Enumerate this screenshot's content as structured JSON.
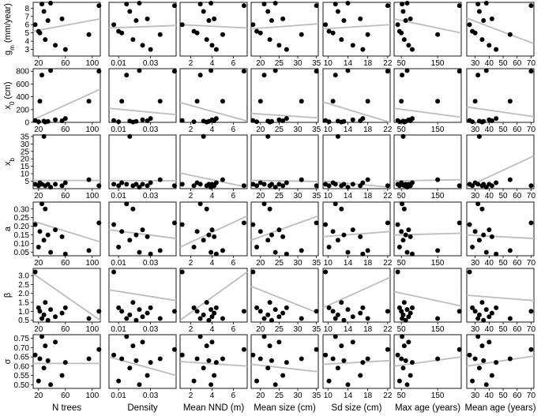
{
  "chart_data": {
    "type": "scatter",
    "grid": false,
    "columns": [
      {
        "id": "ntrees",
        "xlabel": "N trees",
        "xlim": [
          12,
          112
        ],
        "ticks": [
          20,
          60,
          100
        ],
        "tick_labels": [
          "20",
          "60",
          "100"
        ],
        "x": [
          15,
          20,
          22,
          25,
          28,
          30,
          34,
          38,
          45,
          55,
          60,
          95,
          110
        ]
      },
      {
        "id": "density",
        "xlabel": "Density",
        "xlim": [
          0.004,
          0.046
        ],
        "ticks": [
          0.01,
          0.03
        ],
        "tick_labels": [
          "0.01",
          "0.03"
        ],
        "x": [
          0.007,
          0.01,
          0.012,
          0.015,
          0.017,
          0.019,
          0.021,
          0.023,
          0.025,
          0.028,
          0.03,
          0.036,
          0.045
        ]
      },
      {
        "id": "nnd",
        "xlabel": "Mean NND (m)",
        "xlim": [
          1.0,
          7.3
        ],
        "ticks": [
          2,
          4,
          6
        ],
        "tick_labels": [
          "2",
          "4",
          "6"
        ],
        "x": [
          1.2,
          2.3,
          2.6,
          2.9,
          3.2,
          3.5,
          3.7,
          3.9,
          4.0,
          4.2,
          4.4,
          5.0,
          7.0
        ]
      },
      {
        "id": "meansize",
        "xlabel": "Mean size (cm)",
        "xlim": [
          17.5,
          35.5
        ],
        "ticks": [
          20,
          25,
          30,
          35
        ],
        "tick_labels": [
          "20",
          "25",
          "30",
          "35"
        ],
        "x": [
          18,
          19,
          20,
          21,
          22,
          22.5,
          23,
          24,
          25,
          26,
          27,
          31,
          35
        ]
      },
      {
        "id": "sdsize",
        "xlabel": "Sd size (cm)",
        "xlim": [
          9,
          22.5
        ],
        "ticks": [
          10,
          14,
          18,
          22
        ],
        "tick_labels": [
          "10",
          "14",
          "18",
          "22"
        ],
        "x": [
          9.5,
          10.2,
          11,
          11.5,
          12,
          12.7,
          13.2,
          14,
          15,
          16.5,
          17,
          18,
          22
        ]
      },
      {
        "id": "maxage",
        "xlabel": "Max age (years)",
        "xlim": [
          30,
          215
        ],
        "ticks": [
          50,
          150
        ],
        "tick_labels": [
          "50",
          "150"
        ],
        "x": [
          40,
          45,
          50,
          52,
          55,
          58,
          62,
          66,
          70,
          75,
          80,
          150,
          210
        ]
      },
      {
        "id": "meanage",
        "xlabel": "Mean age (years)",
        "xlim": [
          24,
          72
        ],
        "ticks": [
          30,
          40,
          50,
          60,
          70
        ],
        "tick_labels": [
          "30",
          "40",
          "50",
          "60",
          "70"
        ],
        "x": [
          26,
          28,
          30,
          32,
          33,
          35,
          36,
          38,
          40,
          42,
          45,
          55,
          70
        ]
      }
    ],
    "rows": [
      {
        "id": "gm",
        "ylabel": "g",
        "ylabel_sub": "m",
        "ylabel_tail": " (mm/year)",
        "ylim": [
          2.2,
          8.7
        ],
        "ticks": [
          3,
          4,
          5,
          6,
          7,
          8
        ],
        "tick_labels": [
          "3",
          "4",
          "5",
          "6",
          "7",
          "8"
        ],
        "y": [
          6.0,
          5.2,
          5.0,
          8.5,
          7.6,
          4.2,
          6.5,
          8.6,
          3.5,
          6.7,
          3.0,
          4.8,
          8.3
        ]
      },
      {
        "id": "x0",
        "ylabel": "x",
        "ylabel_sub": "0",
        "ylabel_tail": " (cm)",
        "ylim": [
          0,
          840
        ],
        "ticks": [
          0,
          200,
          400,
          600,
          800
        ],
        "tick_labels": [
          "0",
          "200",
          "400",
          "600",
          "800"
        ],
        "y": [
          30,
          10,
          330,
          740,
          20,
          5,
          15,
          810,
          40,
          25,
          60,
          330,
          800
        ]
      },
      {
        "id": "xb",
        "ylabel": "x",
        "ylabel_sub": "b",
        "ylabel_tail": "",
        "ylim": [
          0,
          36
        ],
        "ticks": [
          5,
          10,
          15,
          20,
          25,
          30,
          35
        ],
        "tick_labels": [
          "5",
          "10",
          "15",
          "20",
          "25",
          "30",
          "35"
        ],
        "y": [
          3,
          2,
          4,
          3,
          35,
          2,
          3,
          1,
          3,
          2,
          4,
          6,
          2
        ]
      },
      {
        "id": "a",
        "ylabel": "a",
        "ylabel_sub": "",
        "ylabel_tail": "",
        "ylim": [
          0.03,
          0.34
        ],
        "ticks": [
          0.05,
          0.1,
          0.15,
          0.2,
          0.25,
          0.3
        ],
        "tick_labels": [
          "0.05",
          "0.10",
          "0.15",
          "0.20",
          "0.25",
          "0.30"
        ],
        "y": [
          0.21,
          0.08,
          0.17,
          0.33,
          0.12,
          0.3,
          0.15,
          0.05,
          0.18,
          0.14,
          0.04,
          0.06,
          0.22
        ]
      },
      {
        "id": "beta",
        "ylabel": "β",
        "ylabel_sub": "",
        "ylabel_tail": "",
        "ylim": [
          0.4,
          3.4
        ],
        "ticks": [
          0.5,
          1.0,
          1.5,
          2.0,
          2.5,
          3.0
        ],
        "tick_labels": [
          "0.5",
          "1.0",
          "1.5",
          "2.0",
          "2.5",
          "3.0"
        ],
        "y": [
          3.2,
          1.2,
          1.0,
          0.6,
          0.8,
          1.5,
          0.5,
          1.1,
          0.7,
          0.9,
          1.2,
          0.6,
          1.0
        ]
      },
      {
        "id": "sigma",
        "ylabel": "σ",
        "ylabel_sub": "",
        "ylabel_tail": "",
        "ylim": [
          0.48,
          0.77
        ],
        "ticks": [
          0.5,
          0.55,
          0.6,
          0.65,
          0.7,
          0.75
        ],
        "tick_labels": [
          "0.50",
          "0.55",
          "0.60",
          "0.65",
          "0.70",
          "0.75"
        ],
        "y": [
          0.66,
          0.52,
          0.64,
          0.76,
          0.59,
          0.71,
          0.63,
          0.5,
          0.73,
          0.55,
          0.62,
          0.64,
          0.69
        ]
      }
    ],
    "fits": [
      [
        [
          5.2,
          6.7
        ],
        [
          5.6,
          5.9
        ],
        [
          6.0,
          5.6
        ],
        [
          5.5,
          6.1
        ],
        [
          5.5,
          6.0
        ],
        [
          6.7,
          5.0
        ],
        [
          6.8,
          3.7
        ]
      ],
      [
        [
          40,
          520
        ],
        [
          220,
          120
        ],
        [
          310,
          20
        ],
        [
          140,
          70
        ],
        [
          320,
          0
        ],
        [
          220,
          80
        ],
        [
          240,
          90
        ]
      ],
      [
        [
          5.5,
          5.5
        ],
        [
          5.5,
          5.3
        ],
        [
          10.5,
          1.0
        ],
        [
          5.6,
          4.8
        ],
        [
          5.0,
          1.0
        ],
        [
          5.2,
          6.0
        ],
        [
          1.0,
          22
        ]
      ],
      [
        [
          0.23,
          0.11
        ],
        [
          0.18,
          0.13
        ],
        [
          0.08,
          0.26
        ],
        [
          0.12,
          0.26
        ],
        [
          0.14,
          0.17
        ],
        [
          0.15,
          0.16
        ],
        [
          0.15,
          0.13
        ]
      ],
      [
        [
          3.1,
          0.5
        ],
        [
          2.2,
          1.6
        ],
        [
          0.5,
          3.2
        ],
        [
          2.4,
          0.9
        ],
        [
          1.2,
          2.9
        ],
        [
          2.1,
          1.3
        ],
        [
          1.9,
          1.6
        ]
      ],
      [
        [
          0.615,
          0.615
        ],
        [
          0.65,
          0.55
        ],
        [
          0.625,
          0.6
        ],
        [
          0.61,
          0.57
        ],
        [
          0.61,
          0.63
        ],
        [
          0.6,
          0.65
        ],
        [
          0.6,
          0.655
        ]
      ]
    ]
  }
}
